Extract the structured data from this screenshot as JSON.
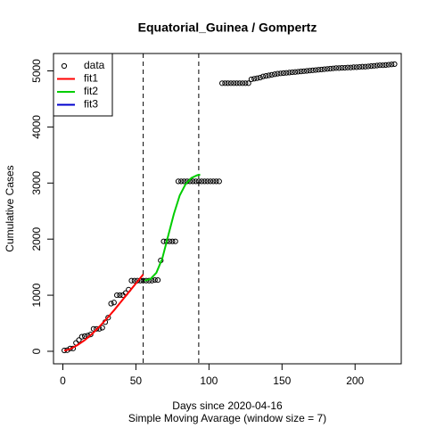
{
  "chart_data": {
    "type": "scatter",
    "title": "Equatorial_Guinea / Gompertz",
    "x_label": "Days since 2020-04-16",
    "subtitle": "Simple Moving Avarage (window size = 7)",
    "y_label": "Cumulative Cases",
    "xlim": [
      -6.4,
      231.6
    ],
    "ylim": [
      -223,
      5310
    ],
    "xticks": [
      0,
      50,
      100,
      150,
      200
    ],
    "yticks": [
      0,
      1000,
      2000,
      3000,
      4000,
      5000
    ],
    "vlines": [
      55,
      93
    ],
    "legend": "top-left",
    "series": [
      {
        "name": "data",
        "color": "#000000",
        "kind": "points",
        "x": [
          1,
          3,
          5,
          7,
          9,
          11,
          13,
          15,
          17,
          19,
          21,
          23,
          25,
          27,
          29,
          31,
          33,
          35,
          37,
          39,
          41,
          43,
          45,
          47,
          49,
          51,
          53,
          55,
          57,
          59,
          61,
          63,
          65,
          67,
          69,
          71,
          73,
          75,
          77,
          79,
          81,
          83,
          85,
          87,
          89,
          91,
          93,
          95,
          97,
          99,
          101,
          103,
          105,
          107,
          109,
          111,
          113,
          115,
          117,
          119,
          121,
          123,
          125,
          127,
          129,
          131,
          133,
          135,
          137,
          139,
          141,
          143,
          145,
          147,
          149,
          151,
          153,
          155,
          157,
          159,
          161,
          163,
          165,
          167,
          169,
          171,
          173,
          175,
          177,
          179,
          181,
          183,
          185,
          187,
          189,
          191,
          193,
          195,
          197,
          199,
          201,
          203,
          205,
          207,
          209,
          211,
          213,
          215,
          217,
          219,
          221,
          223,
          225,
          227
        ],
        "values": [
          15,
          20,
          50,
          50,
          150,
          200,
          260,
          270,
          280,
          300,
          400,
          400,
          400,
          420,
          520,
          600,
          850,
          870,
          1000,
          1000,
          1000,
          1040,
          1100,
          1260,
          1260,
          1260,
          1260,
          1260,
          1260,
          1260,
          1260,
          1270,
          1270,
          1620,
          1960,
          1960,
          1960,
          1960,
          1960,
          3030,
          3030,
          3030,
          3030,
          3030,
          3030,
          3030,
          3030,
          3030,
          3030,
          3030,
          3030,
          3030,
          3030,
          3030,
          4780,
          4780,
          4780,
          4780,
          4780,
          4780,
          4780,
          4780,
          4780,
          4780,
          4850,
          4860,
          4870,
          4880,
          4900,
          4910,
          4920,
          4930,
          4940,
          4950,
          4955,
          4960,
          4965,
          4970,
          4975,
          4980,
          4985,
          4990,
          4995,
          5000,
          5005,
          5010,
          5015,
          5020,
          5025,
          5030,
          5035,
          5040,
          5045,
          5050,
          5050,
          5055,
          5055,
          5060,
          5060,
          5065,
          5065,
          5070,
          5075,
          5075,
          5080,
          5085,
          5090,
          5095,
          5100,
          5100,
          5105,
          5110,
          5115,
          5120
        ]
      },
      {
        "name": "fit1",
        "color": "#ff0000",
        "kind": "line",
        "x": [
          1,
          5,
          10,
          15,
          20,
          25,
          30,
          35,
          40,
          45,
          50,
          55
        ],
        "values": [
          10,
          40,
          110,
          200,
          310,
          440,
          580,
          730,
          890,
          1050,
          1210,
          1370
        ]
      },
      {
        "name": "fit2",
        "color": "#00cd00",
        "kind": "line",
        "x": [
          56,
          60,
          64,
          68,
          72,
          76,
          80,
          84,
          88,
          92,
          94
        ],
        "values": [
          1260,
          1290,
          1400,
          1650,
          2050,
          2450,
          2780,
          2980,
          3090,
          3140,
          3150
        ]
      },
      {
        "name": "fit3",
        "color": "#0000cd",
        "kind": "line"
      }
    ]
  }
}
